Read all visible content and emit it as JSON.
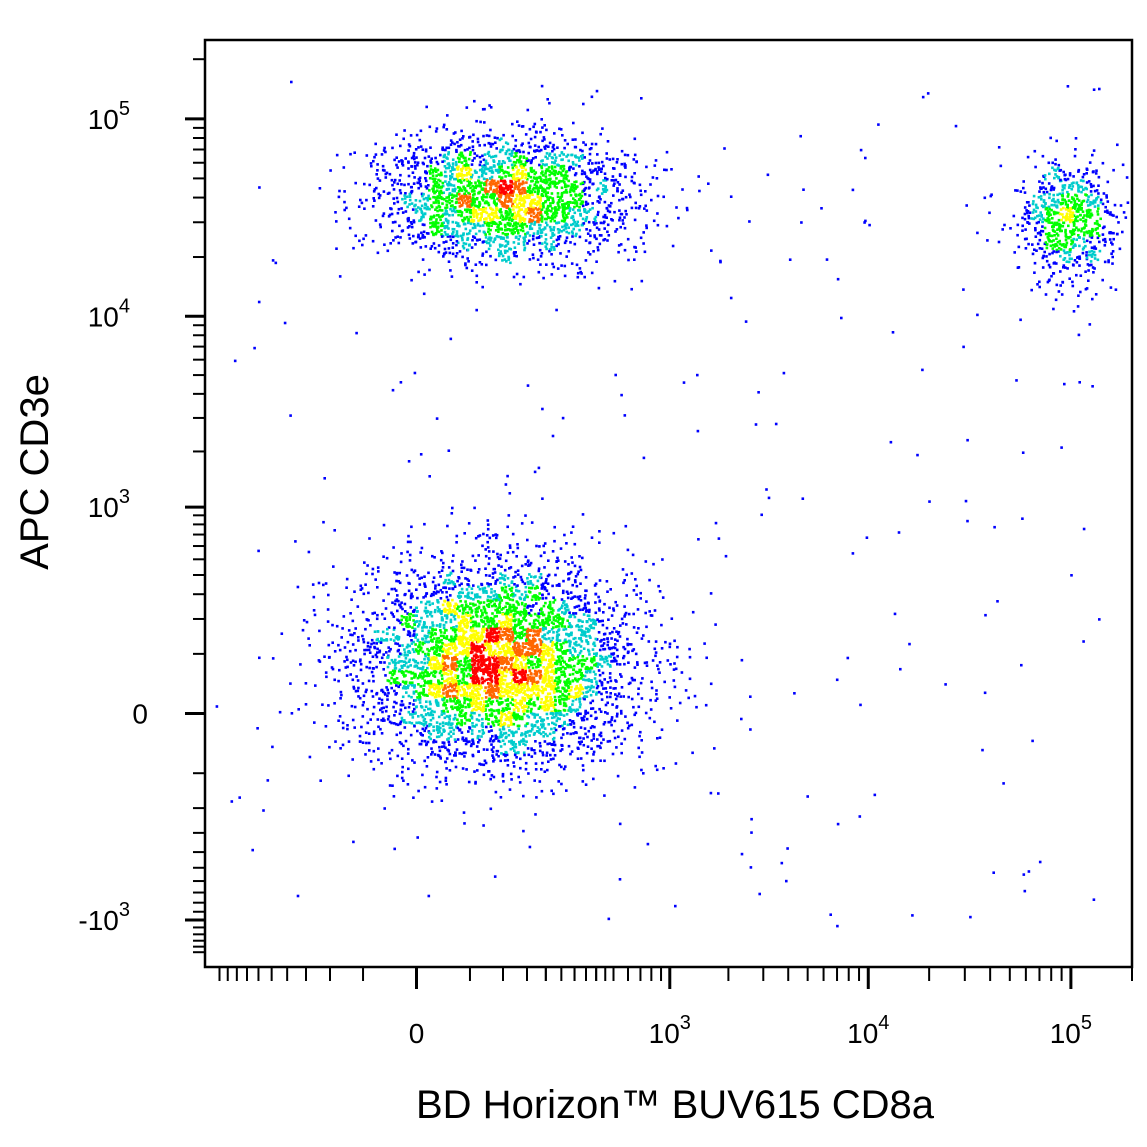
{
  "chart_data": {
    "type": "scatter",
    "subtype": "flow-cytometry-density-dot-plot",
    "title": "",
    "xlabel": "BD Horizon™ BUV615 CD8a",
    "ylabel": "APC  CD3e",
    "x_scale": "biexponential",
    "y_scale": "biexponential",
    "xlim": [
      -600,
      200000
    ],
    "ylim": [
      -1800,
      250000
    ],
    "x_ticks": [
      {
        "base": "0",
        "exp": "",
        "value": 0
      },
      {
        "base": "10",
        "exp": "3",
        "value": 1000
      },
      {
        "base": "10",
        "exp": "4",
        "value": 10000
      },
      {
        "base": "10",
        "exp": "5",
        "value": 100000
      }
    ],
    "y_ticks": [
      {
        "base": "-10",
        "exp": "3",
        "value": -1000
      },
      {
        "base": "0",
        "exp": "",
        "value": 0
      },
      {
        "base": "10",
        "exp": "3",
        "value": 1000
      },
      {
        "base": "10",
        "exp": "4",
        "value": 10000
      },
      {
        "base": "10",
        "exp": "5",
        "value": 100000
      }
    ],
    "grid": false,
    "legend": "none",
    "density_colors": [
      "#0000ff",
      "#00cccc",
      "#00ff00",
      "#ffff00",
      "#ff6600",
      "#ff0000"
    ],
    "populations": [
      {
        "name": "",
        "x_center": 90,
        "y_center": 80,
        "x_spread": 160,
        "y_spread": 120,
        "relative_size": 0.55
      },
      {
        "name": "",
        "x_center": 100,
        "y_center": 40000,
        "x_spread": 150,
        "y_spread": 12000,
        "relative_size": 0.28
      },
      {
        "name": "",
        "x_center": 95000,
        "y_center": 30000,
        "x_spread": 20000,
        "y_spread": 9000,
        "relative_size": 0.08
      }
    ]
  }
}
